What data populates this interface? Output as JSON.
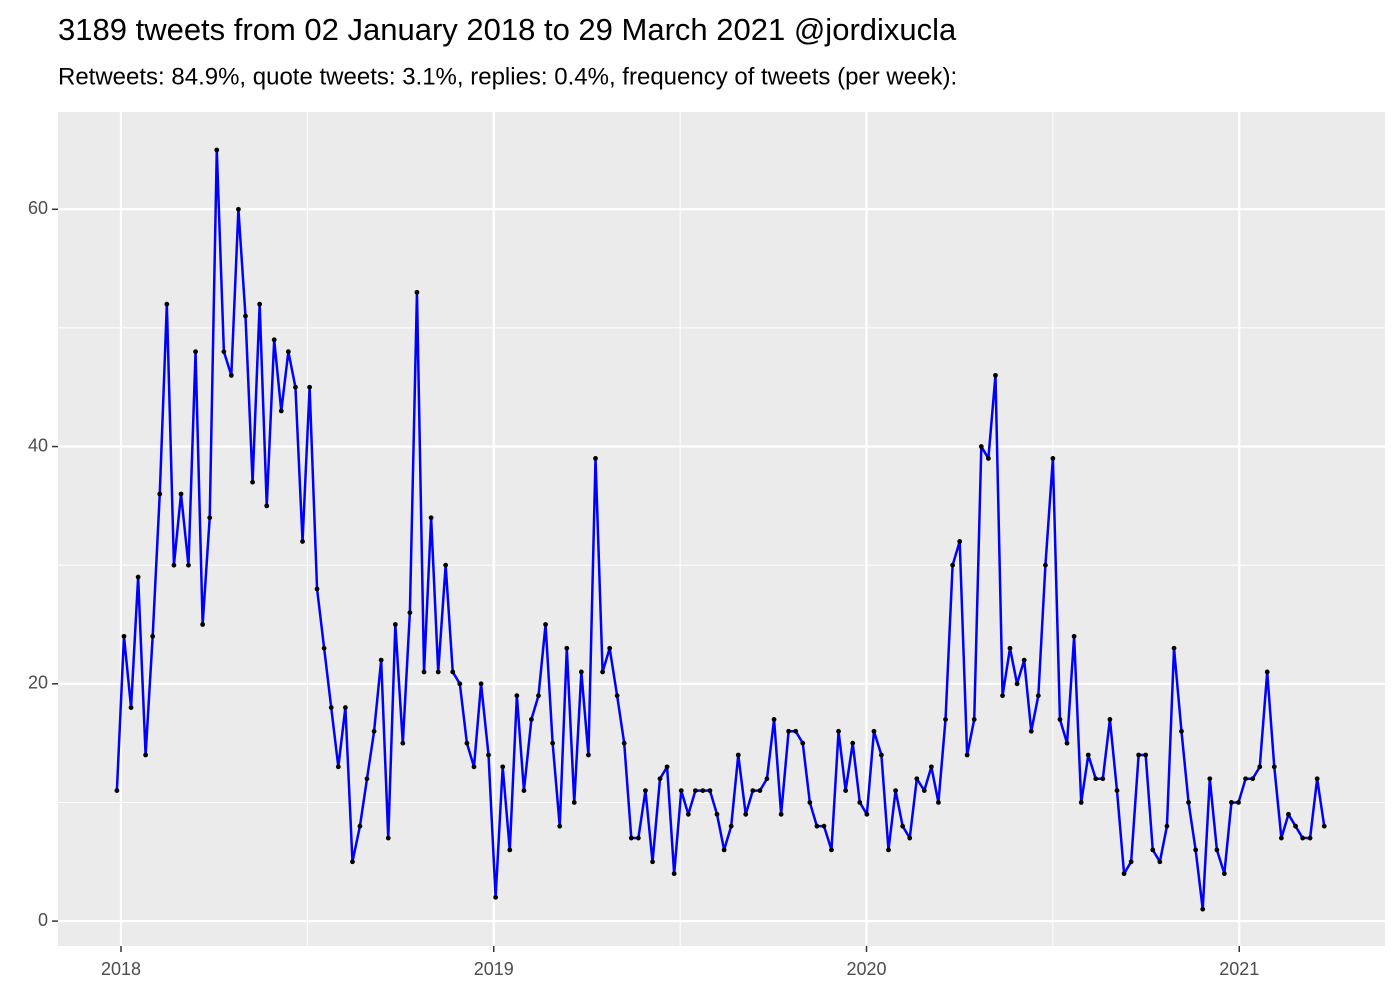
{
  "chart_data": {
    "type": "line",
    "title": "3189 tweets from 02 January 2018 to 29 March 2021 @jordixucla",
    "subtitle": "Retweets: 84.9%, quote tweets: 3.1%, replies: 0.4%, frequency of tweets (per week):",
    "x": [
      2017.989,
      2018.008,
      2018.027,
      2018.046,
      2018.066,
      2018.085,
      2018.104,
      2018.123,
      2018.142,
      2018.161,
      2018.181,
      2018.2,
      2018.219,
      2018.238,
      2018.257,
      2018.276,
      2018.296,
      2018.315,
      2018.334,
      2018.353,
      2018.372,
      2018.391,
      2018.411,
      2018.43,
      2018.449,
      2018.468,
      2018.487,
      2018.506,
      2018.526,
      2018.545,
      2018.564,
      2018.583,
      2018.602,
      2018.621,
      2018.641,
      2018.66,
      2018.679,
      2018.698,
      2018.717,
      2018.736,
      2018.756,
      2018.775,
      2018.794,
      2018.813,
      2018.832,
      2018.851,
      2018.871,
      2018.89,
      2018.909,
      2018.928,
      2018.947,
      2018.966,
      2018.986,
      2019.005,
      2019.024,
      2019.043,
      2019.062,
      2019.081,
      2019.101,
      2019.12,
      2019.139,
      2019.158,
      2019.177,
      2019.196,
      2019.216,
      2019.235,
      2019.254,
      2019.273,
      2019.292,
      2019.311,
      2019.331,
      2019.35,
      2019.369,
      2019.388,
      2019.407,
      2019.426,
      2019.446,
      2019.465,
      2019.484,
      2019.503,
      2019.522,
      2019.541,
      2019.561,
      2019.58,
      2019.599,
      2019.618,
      2019.637,
      2019.656,
      2019.676,
      2019.695,
      2019.714,
      2019.733,
      2019.752,
      2019.771,
      2019.791,
      2019.81,
      2019.829,
      2019.848,
      2019.867,
      2019.886,
      2019.906,
      2019.925,
      2019.944,
      2019.963,
      2019.982,
      2020.001,
      2020.02,
      2020.04,
      2020.059,
      2020.078,
      2020.097,
      2020.116,
      2020.135,
      2020.155,
      2020.174,
      2020.193,
      2020.212,
      2020.231,
      2020.25,
      2020.27,
      2020.289,
      2020.308,
      2020.327,
      2020.346,
      2020.365,
      2020.385,
      2020.404,
      2020.423,
      2020.442,
      2020.461,
      2020.48,
      2020.5,
      2020.519,
      2020.538,
      2020.557,
      2020.576,
      2020.595,
      2020.615,
      2020.634,
      2020.653,
      2020.672,
      2020.691,
      2020.71,
      2020.73,
      2020.749,
      2020.768,
      2020.787,
      2020.806,
      2020.825,
      2020.845,
      2020.864,
      2020.883,
      2020.902,
      2020.921,
      2020.94,
      2020.96,
      2020.979,
      2020.998,
      2021.017,
      2021.036,
      2021.055,
      2021.075,
      2021.094,
      2021.113,
      2021.132,
      2021.151,
      2021.17,
      2021.19,
      2021.209,
      2021.228
    ],
    "values": [
      11,
      24,
      18,
      29,
      14,
      24,
      36,
      52,
      30,
      36,
      30,
      48,
      25,
      34,
      65,
      48,
      46,
      60,
      51,
      37,
      52,
      35,
      49,
      43,
      48,
      45,
      32,
      45,
      28,
      23,
      18,
      13,
      18,
      5,
      8,
      12,
      16,
      22,
      7,
      25,
      15,
      26,
      53,
      21,
      34,
      21,
      30,
      21,
      20,
      15,
      13,
      20,
      14,
      2,
      13,
      6,
      19,
      11,
      17,
      19,
      25,
      15,
      8,
      23,
      10,
      21,
      14,
      39,
      21,
      23,
      19,
      15,
      7,
      7,
      11,
      5,
      12,
      13,
      4,
      11,
      9,
      11,
      11,
      11,
      9,
      6,
      8,
      14,
      9,
      11,
      11,
      12,
      17,
      9,
      16,
      16,
      15,
      10,
      8,
      8,
      6,
      16,
      11,
      15,
      10,
      9,
      16,
      14,
      6,
      11,
      8,
      7,
      12,
      11,
      13,
      10,
      17,
      30,
      32,
      14,
      17,
      40,
      39,
      46,
      19,
      23,
      20,
      22,
      16,
      19,
      30,
      39,
      17,
      15,
      24,
      10,
      14,
      12,
      12,
      17,
      11,
      4,
      5,
      14,
      14,
      6,
      5,
      8,
      23,
      16,
      10,
      6,
      1,
      12,
      6,
      4,
      10,
      10,
      12,
      12,
      13,
      21,
      13,
      7,
      9,
      8,
      7,
      7,
      12,
      8
    ],
    "line_color": "#0000ff",
    "point_color": "#000000",
    "xlim": [
      2017.831,
      2021.391
    ],
    "xticks": [
      2018,
      2019,
      2020,
      2021
    ],
    "minor_xticks": [
      2018.5,
      2019.5,
      2020.5
    ],
    "ylim": [
      -2.1,
      68.2
    ],
    "yticks": [
      0,
      20,
      40,
      60
    ],
    "minor_yticks": [
      10,
      30,
      50
    ],
    "grid": true
  }
}
